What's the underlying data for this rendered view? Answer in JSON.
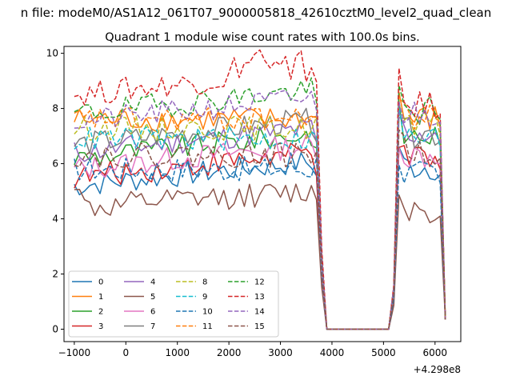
{
  "chart_data": {
    "type": "line",
    "suptitle": "n file: modeM0/AS1A12_061T07_9000005818_42610cztM0_level2_quad_clean",
    "title": "Quadrant 1 module wise count rates with 100.0s bins.",
    "xlabel": "",
    "ylabel": "",
    "x_offset_label": "+4.298e8",
    "xlim": [
      -1200,
      6500
    ],
    "ylim": [
      -0.45,
      10.25
    ],
    "x_ticks": [
      -1000,
      0,
      1000,
      2000,
      3000,
      4000,
      5000,
      6000
    ],
    "x_tick_labels": [
      "−1000",
      "0",
      "1000",
      "2000",
      "3000",
      "4000",
      "5000",
      "6000"
    ],
    "y_ticks": [
      0,
      2,
      4,
      6,
      8,
      10
    ],
    "y_tick_labels": [
      "0",
      "2",
      "4",
      "6",
      "8",
      "10"
    ],
    "grid": false,
    "legend_placement": "lower-left",
    "legend_columns": 4,
    "x": [
      -1000,
      -900,
      -800,
      -700,
      -600,
      -500,
      -400,
      -300,
      -200,
      -100,
      0,
      100,
      200,
      300,
      400,
      500,
      600,
      700,
      800,
      900,
      1000,
      1100,
      1200,
      1300,
      1400,
      1500,
      1600,
      1700,
      1800,
      1900,
      2000,
      2100,
      2200,
      2300,
      2400,
      2500,
      2600,
      2700,
      2800,
      2900,
      3000,
      3100,
      3200,
      3300,
      3400,
      3500,
      3600,
      3700,
      3800,
      3900,
      4000,
      4100,
      4200,
      4300,
      4400,
      4500,
      4600,
      4700,
      4800,
      4900,
      5000,
      5100,
      5200,
      5300,
      5400,
      5500,
      5600,
      5700,
      5800,
      5900,
      6000,
      6100,
      6200
    ],
    "gap_start_index": 50,
    "gap_end_index": 60,
    "resume_index": 63,
    "series": [
      {
        "name": "0",
        "color": "#1f77b4",
        "dash": "solid",
        "base": 5.2,
        "shape": "rise",
        "post": 5.8
      },
      {
        "name": "1",
        "color": "#ff7f0e",
        "dash": "solid",
        "base": 7.6,
        "shape": "flat",
        "post": 7.5
      },
      {
        "name": "2",
        "color": "#2ca02c",
        "dash": "solid",
        "base": 6.2,
        "shape": "rise",
        "post": 6.9
      },
      {
        "name": "3",
        "color": "#d62728",
        "dash": "solid",
        "base": 5.5,
        "shape": "rise",
        "post": 6.0
      },
      {
        "name": "4",
        "color": "#9467bd",
        "dash": "solid",
        "base": 6.4,
        "shape": "rise",
        "post": 7.0
      },
      {
        "name": "5",
        "color": "#8c564b",
        "dash": "solid",
        "base": 4.4,
        "shape": "rise5",
        "post": 4.3
      },
      {
        "name": "6",
        "color": "#e377c2",
        "dash": "solid",
        "base": 5.8,
        "shape": "rise",
        "post": 6.2
      },
      {
        "name": "7",
        "color": "#7f7f7f",
        "dash": "solid",
        "base": 6.7,
        "shape": "rise",
        "post": 7.0
      },
      {
        "name": "8",
        "color": "#bcbd22",
        "dash": "dashed",
        "base": 7.3,
        "shape": "flat",
        "post": 7.2
      },
      {
        "name": "9",
        "color": "#17becf",
        "dash": "dashed",
        "base": 6.9,
        "shape": "flat",
        "post": 6.8
      },
      {
        "name": "10",
        "color": "#1f77b4",
        "dash": "dashed",
        "base": 5.8,
        "shape": "flat",
        "post": 5.5
      },
      {
        "name": "11",
        "color": "#ff7f0e",
        "dash": "dashed",
        "base": 7.6,
        "shape": "flat",
        "post": 7.6
      },
      {
        "name": "12",
        "color": "#2ca02c",
        "dash": "dashed",
        "base": 7.8,
        "shape": "rise",
        "post": 7.8
      },
      {
        "name": "13",
        "color": "#d62728",
        "dash": "dashed",
        "base": 8.5,
        "shape": "rise",
        "post": 8.0
      },
      {
        "name": "14",
        "color": "#9467bd",
        "dash": "dashed",
        "base": 7.5,
        "shape": "rise",
        "post": 7.7
      },
      {
        "name": "15",
        "color": "#8c564b",
        "dash": "dashed",
        "base": 6.3,
        "shape": "flat",
        "post": 6.4
      }
    ]
  }
}
